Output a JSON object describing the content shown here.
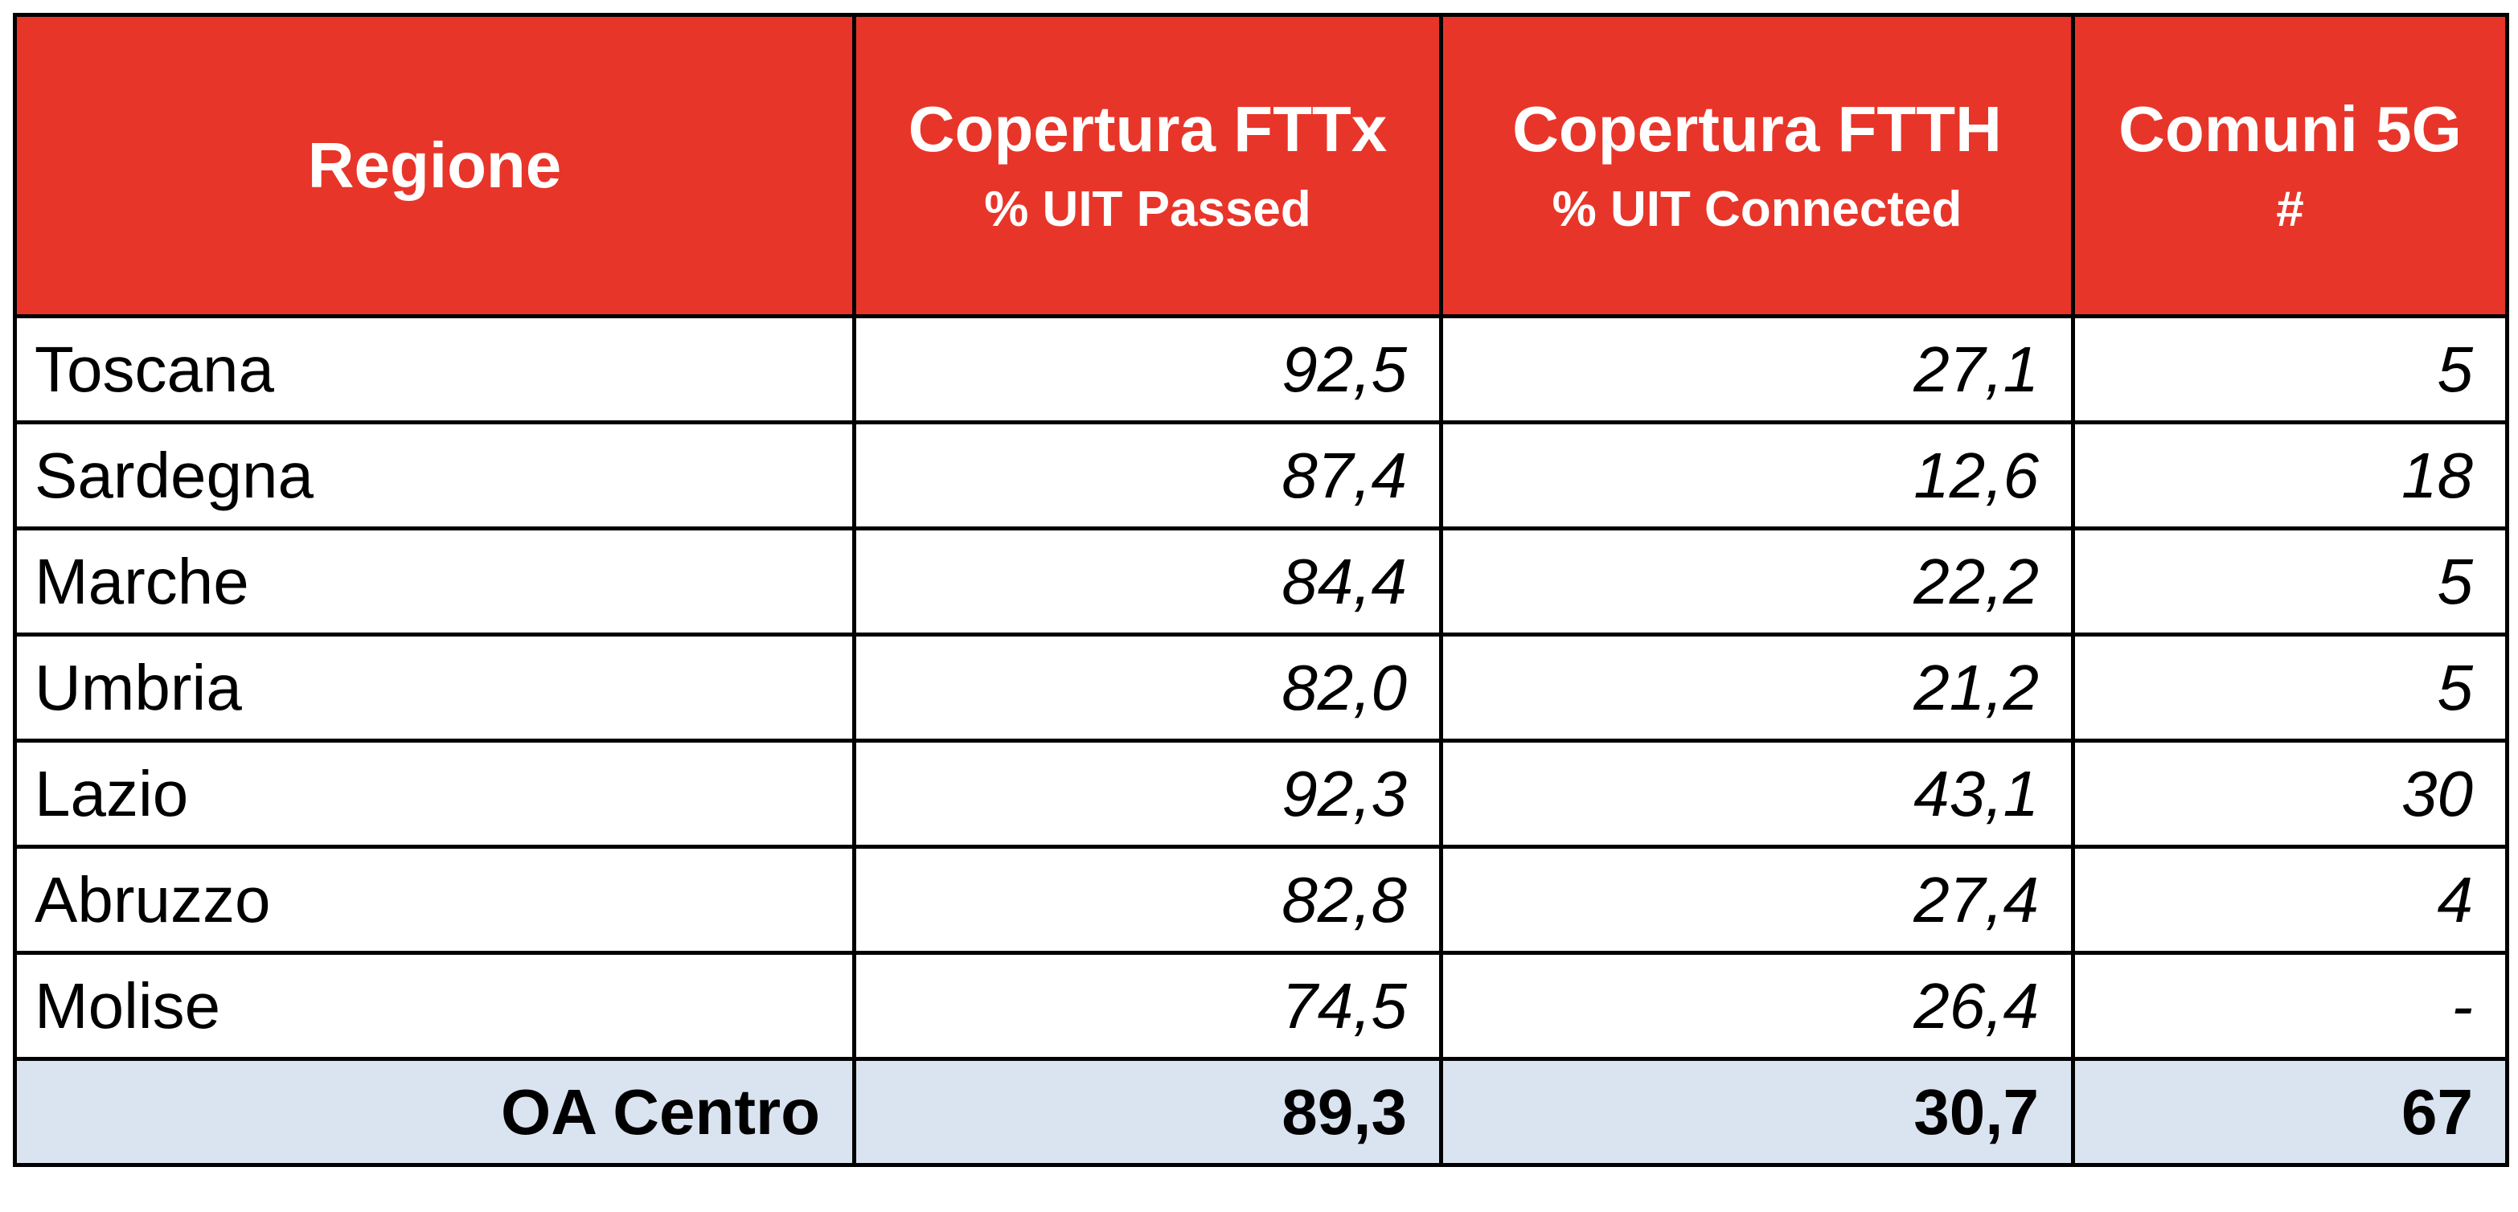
{
  "table": {
    "header": [
      {
        "title": "Regione"
      },
      {
        "title": "Copertura FTTx",
        "subtitle": "% UIT Passed"
      },
      {
        "title": "Copertura FTTH",
        "subtitle": "% UIT Connected"
      },
      {
        "title": "Comuni 5G",
        "subtitle": "#"
      }
    ],
    "rows": [
      [
        "Toscana",
        "92,5",
        "27,1",
        "5"
      ],
      [
        "Sardegna",
        "87,4",
        "12,6",
        "18"
      ],
      [
        "Marche",
        "84,4",
        "22,2",
        "5"
      ],
      [
        "Umbria",
        "82,0",
        "21,2",
        "5"
      ],
      [
        "Lazio",
        "92,3",
        "43,1",
        "30"
      ],
      [
        "Abruzzo",
        "82,8",
        "27,4",
        "4"
      ],
      [
        "Molise",
        "74,5",
        "26,4",
        "-"
      ]
    ],
    "total": [
      "OA Centro",
      "89,3",
      "30,7",
      "67"
    ]
  }
}
